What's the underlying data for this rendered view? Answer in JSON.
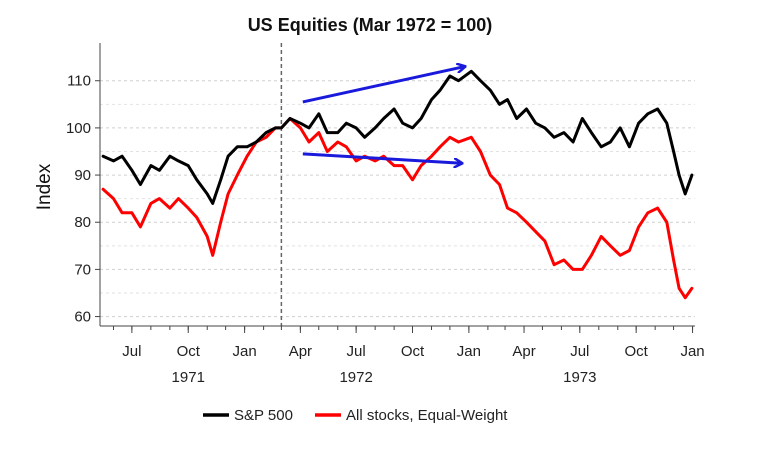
{
  "chart_data": {
    "type": "line",
    "title": "US Equities (Mar 1972 = 100)",
    "xlabel": "",
    "ylabel": "Index",
    "ylim": [
      58,
      118
    ],
    "xlim": [
      "1971-05-10",
      "1974-01-05"
    ],
    "y_ticks": [
      60,
      70,
      80,
      90,
      100,
      110
    ],
    "x_ticks": [
      {
        "date": "1971-07-01",
        "label": "Jul"
      },
      {
        "date": "1971-10-01",
        "label": "Oct"
      },
      {
        "date": "1972-01-01",
        "label": "Jan"
      },
      {
        "date": "1972-04-01",
        "label": "Apr"
      },
      {
        "date": "1972-07-01",
        "label": "Jul"
      },
      {
        "date": "1972-10-01",
        "label": "Oct"
      },
      {
        "date": "1973-01-01",
        "label": "Jan"
      },
      {
        "date": "1973-04-01",
        "label": "Apr"
      },
      {
        "date": "1973-07-01",
        "label": "Jul"
      },
      {
        "date": "1973-10-01",
        "label": "Oct"
      },
      {
        "date": "1974-01-01",
        "label": "Jan"
      }
    ],
    "year_labels": [
      {
        "date": "1971-10-01",
        "label": "1971"
      },
      {
        "date": "1972-07-01",
        "label": "1972"
      },
      {
        "date": "1973-07-01",
        "label": "1973"
      }
    ],
    "grid": "horizontal-dashed",
    "legend": "bottom",
    "reference_line": {
      "date": "1972-03-01",
      "style": "dashed"
    },
    "series": [
      {
        "name": "S&P 500",
        "color": "#000000",
        "x": [
          "1971-05-15",
          "1971-06-01",
          "1971-06-15",
          "1971-07-01",
          "1971-07-15",
          "1971-08-01",
          "1971-08-15",
          "1971-09-01",
          "1971-09-15",
          "1971-10-01",
          "1971-10-15",
          "1971-11-01",
          "1971-11-10",
          "1971-11-23",
          "1971-12-05",
          "1971-12-20",
          "1972-01-05",
          "1972-01-20",
          "1972-02-05",
          "1972-02-20",
          "1972-03-01",
          "1972-03-15",
          "1972-04-01",
          "1972-04-15",
          "1972-05-01",
          "1972-05-15",
          "1972-06-01",
          "1972-06-15",
          "1972-07-01",
          "1972-07-15",
          "1972-08-01",
          "1972-08-15",
          "1972-09-01",
          "1972-09-15",
          "1972-10-01",
          "1972-10-15",
          "1972-11-01",
          "1972-11-15",
          "1972-12-01",
          "1972-12-15",
          "1973-01-05",
          "1973-01-20",
          "1973-02-05",
          "1973-02-20",
          "1973-03-05",
          "1973-03-20",
          "1973-04-05",
          "1973-04-20",
          "1973-05-05",
          "1973-05-20",
          "1973-06-05",
          "1973-06-20",
          "1973-07-05",
          "1973-07-20",
          "1973-08-05",
          "1973-08-20",
          "1973-09-05",
          "1973-09-20",
          "1973-10-05",
          "1973-10-20",
          "1973-11-05",
          "1973-11-20",
          "1973-12-01",
          "1973-12-10",
          "1973-12-20",
          "1973-12-31"
        ],
        "y": [
          94,
          93,
          94,
          91,
          88,
          92,
          91,
          94,
          93,
          92,
          89,
          86,
          84,
          89,
          94,
          96,
          96,
          97,
          99,
          100,
          100,
          102,
          101,
          100,
          103,
          99,
          99,
          101,
          100,
          98,
          100,
          102,
          104,
          101,
          100,
          102,
          106,
          108,
          111,
          110,
          112,
          110,
          108,
          105,
          106,
          102,
          104,
          101,
          100,
          98,
          99,
          97,
          102,
          99,
          96,
          97,
          100,
          96,
          101,
          103,
          104,
          101,
          95,
          90,
          86,
          90
        ]
      },
      {
        "name": "All stocks, Equal-Weight",
        "color": "#ff0000",
        "x": [
          "1971-05-15",
          "1971-06-01",
          "1971-06-15",
          "1971-07-01",
          "1971-07-15",
          "1971-08-01",
          "1971-08-15",
          "1971-09-01",
          "1971-09-15",
          "1971-10-01",
          "1971-10-15",
          "1971-11-01",
          "1971-11-10",
          "1971-11-23",
          "1971-12-05",
          "1971-12-20",
          "1972-01-05",
          "1972-01-20",
          "1972-02-05",
          "1972-02-20",
          "1972-03-01",
          "1972-03-15",
          "1972-04-01",
          "1972-04-15",
          "1972-05-01",
          "1972-05-15",
          "1972-06-01",
          "1972-06-15",
          "1972-07-01",
          "1972-07-15",
          "1972-08-01",
          "1972-08-15",
          "1972-09-01",
          "1972-09-15",
          "1972-10-01",
          "1972-10-15",
          "1972-11-01",
          "1972-11-15",
          "1972-12-01",
          "1972-12-15",
          "1973-01-05",
          "1973-01-20",
          "1973-02-05",
          "1973-02-20",
          "1973-03-05",
          "1973-03-20",
          "1973-04-05",
          "1973-04-20",
          "1973-05-05",
          "1973-05-20",
          "1973-06-05",
          "1973-06-20",
          "1973-07-05",
          "1973-07-20",
          "1973-08-05",
          "1973-08-20",
          "1973-09-05",
          "1973-09-20",
          "1973-10-05",
          "1973-10-20",
          "1973-11-05",
          "1973-11-20",
          "1973-12-01",
          "1973-12-10",
          "1973-12-20",
          "1973-12-31"
        ],
        "y": [
          87,
          85,
          82,
          82,
          79,
          84,
          85,
          83,
          85,
          83,
          81,
          77,
          73,
          80,
          86,
          90,
          94,
          97,
          98,
          100,
          100,
          102,
          100,
          97,
          99,
          95,
          97,
          96,
          93,
          94,
          93,
          94,
          92,
          92,
          89,
          92,
          94,
          96,
          98,
          97,
          98,
          95,
          90,
          88,
          83,
          82,
          80,
          78,
          76,
          71,
          72,
          70,
          70,
          73,
          77,
          75,
          73,
          74,
          79,
          82,
          83,
          80,
          72,
          66,
          64,
          66
        ]
      }
    ],
    "annotations": [
      {
        "type": "arrow",
        "color": "#1a1adc",
        "from": {
          "date": "1972-04-05",
          "value": 105.5
        },
        "to": {
          "date": "1972-12-25",
          "value": 113
        }
      },
      {
        "type": "arrow",
        "color": "#1a1adc",
        "from": {
          "date": "1972-04-05",
          "value": 94.5
        },
        "to": {
          "date": "1972-12-20",
          "value": 92.5
        }
      }
    ]
  }
}
